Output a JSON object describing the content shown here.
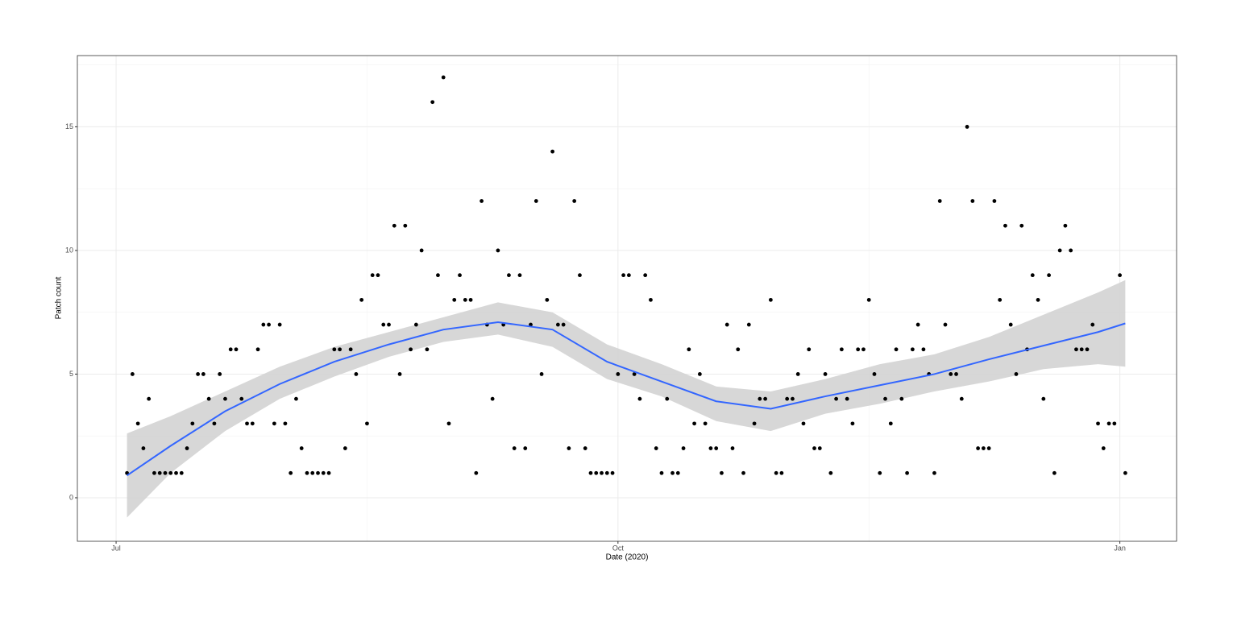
{
  "chart_data": {
    "type": "scatter",
    "x_label": "Date (2020)",
    "y_label": "Patch count",
    "x": [
      2,
      3,
      4,
      5,
      6,
      7,
      8,
      9,
      10,
      11,
      12,
      13,
      14,
      15,
      16,
      17,
      18,
      19,
      20,
      21,
      22,
      23,
      24,
      25,
      26,
      27,
      28,
      29,
      30,
      31,
      32,
      33,
      34,
      35,
      36,
      37,
      38,
      39,
      40,
      41,
      42,
      43,
      44,
      45,
      46,
      47,
      48,
      49,
      50,
      51,
      52,
      53,
      54,
      55,
      56,
      57,
      58,
      59,
      60,
      61,
      62,
      63,
      64,
      65,
      66,
      67,
      68,
      69,
      70,
      71,
      72,
      73,
      74,
      75,
      76,
      77,
      78,
      79,
      80,
      81,
      82,
      83,
      84,
      85,
      86,
      87,
      88,
      89,
      90,
      91,
      92,
      93,
      94,
      95,
      96,
      97,
      98,
      99,
      100,
      101,
      102,
      103,
      104,
      105,
      106,
      107,
      108,
      109,
      110,
      111,
      112,
      113,
      114,
      115,
      116,
      117,
      118,
      119,
      120,
      121,
      122,
      123,
      124,
      125,
      126,
      127,
      128,
      129,
      130,
      131,
      132,
      133,
      134,
      135,
      136,
      137,
      138,
      139,
      140,
      141,
      142,
      143,
      144,
      145,
      146,
      147,
      148,
      149,
      150,
      151,
      152,
      153,
      154,
      155,
      156,
      157,
      158,
      159,
      160,
      161,
      162,
      163,
      164,
      165,
      166,
      167,
      168,
      169,
      170,
      171,
      172,
      173,
      174,
      175,
      176,
      177,
      178,
      179,
      180,
      181,
      182,
      183,
      184,
      185
    ],
    "values": [
      1,
      5,
      3,
      2,
      4,
      1,
      1,
      1,
      1,
      1,
      1,
      2,
      3,
      5,
      5,
      4,
      3,
      5,
      4,
      6,
      6,
      4,
      3,
      3,
      6,
      7,
      7,
      3,
      7,
      3,
      1,
      4,
      2,
      1,
      1,
      1,
      1,
      1,
      6,
      6,
      2,
      6,
      5,
      8,
      3,
      9,
      9,
      7,
      7,
      11,
      5,
      11,
      6,
      7,
      10,
      6,
      16,
      9,
      17,
      3,
      8,
      9,
      8,
      8,
      1,
      12,
      7,
      4,
      10,
      7,
      9,
      2,
      9,
      2,
      7,
      12,
      5,
      8,
      14,
      7,
      7,
      2,
      12,
      9,
      2,
      1,
      1,
      1,
      1,
      1,
      5,
      9,
      9,
      5,
      4,
      9,
      8,
      2,
      1,
      4,
      1,
      1,
      2,
      6,
      3,
      5,
      3,
      2,
      2,
      1,
      7,
      2,
      6,
      1,
      7,
      3,
      4,
      4,
      8,
      1,
      1,
      4,
      4,
      5,
      3,
      6,
      2,
      2,
      5,
      1,
      4,
      6,
      4,
      3,
      6,
      6,
      8,
      5,
      1,
      4,
      3,
      6,
      4,
      1,
      6,
      7,
      6,
      5,
      1,
      12,
      7,
      5,
      5,
      4,
      15,
      12,
      2,
      2,
      2,
      12,
      8,
      11,
      7,
      5,
      11,
      6,
      9,
      8,
      4,
      9,
      1,
      10,
      11,
      10,
      6,
      6,
      6,
      7,
      3,
      2,
      3,
      3,
      9,
      1
    ],
    "color": "#000000",
    "smooth": {
      "x": [
        2,
        10,
        20,
        30,
        40,
        50,
        60,
        70,
        80,
        90,
        100,
        110,
        120,
        130,
        140,
        150,
        160,
        170,
        180,
        185
      ],
      "values": [
        0.9,
        2.1,
        3.5,
        4.6,
        5.5,
        6.2,
        6.8,
        7.1,
        6.8,
        5.5,
        4.7,
        3.9,
        3.6,
        4.1,
        4.55,
        5.0,
        5.6,
        6.15,
        6.7,
        7.05
      ],
      "lower": [
        -0.8,
        1.0,
        2.7,
        4.0,
        4.9,
        5.7,
        6.3,
        6.6,
        6.1,
        4.8,
        4.1,
        3.1,
        2.7,
        3.4,
        3.8,
        4.3,
        4.7,
        5.2,
        5.4,
        5.3
      ],
      "upper": [
        2.6,
        3.3,
        4.3,
        5.3,
        6.1,
        6.7,
        7.3,
        7.9,
        7.5,
        6.2,
        5.4,
        4.5,
        4.3,
        4.8,
        5.4,
        5.8,
        6.5,
        7.4,
        8.3,
        8.8
      ],
      "color": "#3366ff",
      "band_color": "#d3d3d3"
    },
    "xlim": [
      -7.1,
      194.4
    ],
    "ylim": [
      -1.76,
      17.88
    ],
    "xticks": [
      {
        "value": 0,
        "label": "Jul"
      },
      {
        "value": 92,
        "label": "Oct"
      },
      {
        "value": 184,
        "label": "Jan"
      }
    ],
    "yticks": [
      0,
      5,
      10,
      15
    ],
    "x_minor_grid": [
      46,
      138
    ],
    "y_minor_grid": [
      2.5,
      7.5,
      12.5,
      17.5
    ],
    "grid": true
  }
}
